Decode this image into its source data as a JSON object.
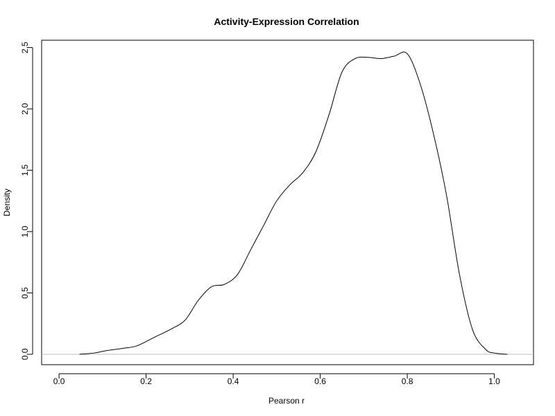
{
  "chart_data": {
    "type": "area",
    "title": "Activity-Expression Correlation",
    "xlabel": "Pearson r",
    "ylabel": "Density",
    "xlim": [
      -0.04,
      1.09
    ],
    "ylim": [
      -0.085,
      2.56
    ],
    "xticks": [
      0.0,
      0.2,
      0.4,
      0.6,
      0.8,
      1.0
    ],
    "xtick_labels": [
      "0.0",
      "0.2",
      "0.4",
      "0.6",
      "0.8",
      "1.0"
    ],
    "yticks": [
      0.0,
      0.5,
      1.0,
      1.5,
      2.0,
      2.5
    ],
    "ytick_labels": [
      "0.0",
      "0.5",
      "1.0",
      "1.5",
      "2.0",
      "2.5"
    ],
    "baseline": 0,
    "colors": {
      "line": "#000000",
      "baseline": "#bebebe",
      "axis": "#000000"
    },
    "series": [
      {
        "x": [
          0.047,
          0.08,
          0.11,
          0.15,
          0.18,
          0.22,
          0.26,
          0.29,
          0.32,
          0.35,
          0.38,
          0.41,
          0.44,
          0.47,
          0.5,
          0.53,
          0.56,
          0.59,
          0.62,
          0.65,
          0.68,
          0.71,
          0.74,
          0.77,
          0.8,
          0.83,
          0.86,
          0.89,
          0.92,
          0.95,
          0.98,
          1.0,
          1.03
        ],
        "y": [
          0.0,
          0.01,
          0.03,
          0.05,
          0.07,
          0.14,
          0.21,
          0.28,
          0.44,
          0.55,
          0.57,
          0.65,
          0.85,
          1.05,
          1.25,
          1.38,
          1.48,
          1.65,
          1.95,
          2.3,
          2.41,
          2.42,
          2.41,
          2.43,
          2.45,
          2.2,
          1.8,
          1.3,
          0.65,
          0.2,
          0.04,
          0.01,
          0.0
        ]
      }
    ]
  }
}
